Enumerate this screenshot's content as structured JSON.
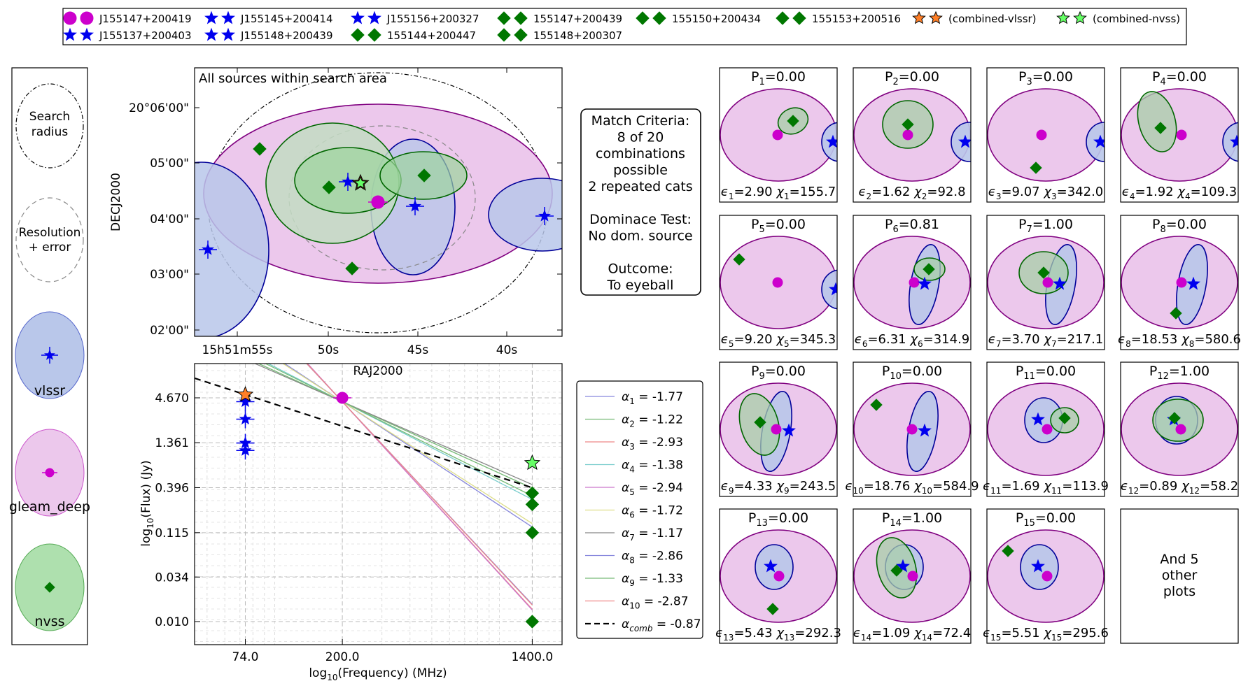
{
  "colors": {
    "vlssr": "#0000ee",
    "vlssr_fill": "#b9c7ea",
    "gleam": "#cc00cc",
    "gleam_fill": "#ecc8ec",
    "gleam_edge": "#800080",
    "nvss": "#007700",
    "nvss_fill": "#aee0ae",
    "comb_vlssr": "#ff7f27",
    "comb_nvss": "#66ff66"
  },
  "legend_top": {
    "items": [
      {
        "label": "J155147+200419",
        "cat": "gleam"
      },
      {
        "label": "J155145+200414",
        "cat": "vlssr"
      },
      {
        "label": "J155156+200327",
        "cat": "vlssr"
      },
      {
        "label": "155147+200439",
        "cat": "nvss"
      },
      {
        "label": "155150+200434",
        "cat": "nvss"
      },
      {
        "label": "155153+200516",
        "cat": "nvss"
      },
      {
        "label": "(combined-vlssr)",
        "cat": "comb_vlssr"
      },
      {
        "label": "(combined-nvss)",
        "cat": "comb_nvss"
      },
      {
        "label": "J155137+200403",
        "cat": "vlssr"
      },
      {
        "label": "J155148+200439",
        "cat": "vlssr"
      },
      {
        "label": "155144+200447",
        "cat": "nvss"
      },
      {
        "label": "155148+200307",
        "cat": "nvss"
      }
    ]
  },
  "key_panel": {
    "search_label": [
      "Search",
      "radius"
    ],
    "resolution_label": [
      "Resolution",
      "+ error"
    ],
    "cats": [
      "vlssr",
      "gleam_deep",
      "nvss"
    ]
  },
  "main_plot": {
    "title": "All sources within search area",
    "xlabel": "RAJ2000",
    "ylabel": "DECJ2000",
    "xticks": [
      "15h51m55s",
      "50s",
      "45s",
      "40s"
    ],
    "yticks": [
      "20°06'00\"",
      "05'00\"",
      "04'00\"",
      "03'00\"",
      "02'00\""
    ]
  },
  "match_box": {
    "lines": [
      "Match Criteria:",
      "8 of 20",
      "combinations",
      "possible",
      "2 repeated cats",
      "",
      "Dominace Test:",
      "No dom. source",
      "",
      "Outcome:",
      "To eyeball"
    ]
  },
  "chart_data": {
    "type": "line",
    "xlabel": "log10(Frequency) (MHz)",
    "ylabel": "log10(Flux) (Jy)",
    "xticks": [
      "74.0",
      "200.0",
      "1400.0"
    ],
    "xtick_values": [
      74,
      200,
      1400
    ],
    "yticks": [
      "4.670",
      "1.361",
      "0.396",
      "0.115",
      "0.034",
      "0.010"
    ],
    "ytick_values": [
      4.67,
      1.361,
      0.396,
      0.115,
      0.034,
      0.01
    ],
    "points": {
      "vlssr": [
        [
          74,
          4.2
        ],
        [
          74,
          2.6
        ],
        [
          74,
          1.35
        ],
        [
          74,
          1.1
        ]
      ],
      "gleam": [
        [
          200,
          4.67
        ]
      ],
      "nvss": [
        [
          1400,
          0.34
        ],
        [
          1400,
          0.25
        ],
        [
          1400,
          0.115
        ],
        [
          1400,
          0.01
        ]
      ],
      "comb_vlssr": [
        [
          74,
          5.1
        ]
      ],
      "comb_nvss": [
        [
          1400,
          0.78
        ]
      ]
    },
    "series": [
      {
        "name": "α₁ = -1.77",
        "label": "α",
        "sub": "1",
        "value": "-1.77",
        "alpha": -1.77,
        "color": "#8888dd"
      },
      {
        "name": "α₂ = -1.22",
        "label": "α",
        "sub": "2",
        "value": "-1.22",
        "alpha": -1.22,
        "color": "#77bb77"
      },
      {
        "name": "α₃ = -2.93",
        "label": "α",
        "sub": "3",
        "value": "-2.93",
        "alpha": -2.93,
        "color": "#ee8888"
      },
      {
        "name": "α₄ = -1.38",
        "label": "α",
        "sub": "4",
        "value": "-1.38",
        "alpha": -1.38,
        "color": "#77cccc"
      },
      {
        "name": "α₅ = -2.94",
        "label": "α",
        "sub": "5",
        "value": "-2.94",
        "alpha": -2.94,
        "color": "#cc77cc"
      },
      {
        "name": "α₆ = -1.72",
        "label": "α",
        "sub": "6",
        "value": "-1.72",
        "alpha": -1.72,
        "color": "#dddd88"
      },
      {
        "name": "α₇ = -1.17",
        "label": "α",
        "sub": "7",
        "value": "-1.17",
        "alpha": -1.17,
        "color": "#888888"
      },
      {
        "name": "α₈ = -2.86",
        "label": "α",
        "sub": "8",
        "value": "-2.86",
        "alpha": -2.86,
        "color": "#8888dd"
      },
      {
        "name": "α₉ = -1.33",
        "label": "α",
        "sub": "9",
        "value": "-1.33",
        "alpha": -1.33,
        "color": "#77bb77"
      },
      {
        "name": "α₁₀ = -2.87",
        "label": "α",
        "sub": "10",
        "value": "-2.87",
        "alpha": -2.87,
        "color": "#ee8888"
      },
      {
        "name": "α_comb = -0.87",
        "label": "α",
        "sub": "comb",
        "value": "-0.87",
        "alpha": -0.87,
        "color": "#000000",
        "dashed": true
      }
    ]
  },
  "small_plots": [
    {
      "p": "P",
      "pi": "1",
      "pv": "0.00",
      "ei": "1",
      "ev": "2.90",
      "xi": "1",
      "xv": "155.7"
    },
    {
      "p": "P",
      "pi": "2",
      "pv": "0.00",
      "ei": "2",
      "ev": "1.62",
      "xi": "2",
      "xv": "92.8"
    },
    {
      "p": "P",
      "pi": "3",
      "pv": "0.00",
      "ei": "3",
      "ev": "9.07",
      "xi": "3",
      "xv": "342.0"
    },
    {
      "p": "P",
      "pi": "4",
      "pv": "0.00",
      "ei": "4",
      "ev": "1.92",
      "xi": "4",
      "xv": "109.3"
    },
    {
      "p": "P",
      "pi": "5",
      "pv": "0.00",
      "ei": "5",
      "ev": "9.20",
      "xi": "5",
      "xv": "345.3"
    },
    {
      "p": "P",
      "pi": "6",
      "pv": "0.81",
      "ei": "6",
      "ev": "6.31",
      "xi": "6",
      "xv": "314.9"
    },
    {
      "p": "P",
      "pi": "7",
      "pv": "1.00",
      "ei": "7",
      "ev": "3.70",
      "xi": "7",
      "xv": "217.1"
    },
    {
      "p": "P",
      "pi": "8",
      "pv": "0.00",
      "ei": "8",
      "ev": "18.53",
      "xi": "8",
      "xv": "580.6"
    },
    {
      "p": "P",
      "pi": "9",
      "pv": "0.00",
      "ei": "9",
      "ev": "4.33",
      "xi": "9",
      "xv": "243.5"
    },
    {
      "p": "P",
      "pi": "10",
      "pv": "0.00",
      "ei": "10",
      "ev": "18.76",
      "xi": "10",
      "xv": "584.9"
    },
    {
      "p": "P",
      "pi": "11",
      "pv": "0.00",
      "ei": "11",
      "ev": "1.69",
      "xi": "11",
      "xv": "113.9"
    },
    {
      "p": "P",
      "pi": "12",
      "pv": "1.00",
      "ei": "12",
      "ev": "0.89",
      "xi": "12",
      "xv": "58.2"
    },
    {
      "p": "P",
      "pi": "13",
      "pv": "0.00",
      "ei": "13",
      "ev": "5.43",
      "xi": "13",
      "xv": "292.3"
    },
    {
      "p": "P",
      "pi": "14",
      "pv": "1.00",
      "ei": "14",
      "ev": "1.09",
      "xi": "14",
      "xv": "72.4"
    },
    {
      "p": "P",
      "pi": "15",
      "pv": "0.00",
      "ei": "15",
      "ev": "5.51",
      "xi": "15",
      "xv": "295.6"
    }
  ],
  "other_plots": [
    "And 5",
    "other",
    "plots"
  ]
}
